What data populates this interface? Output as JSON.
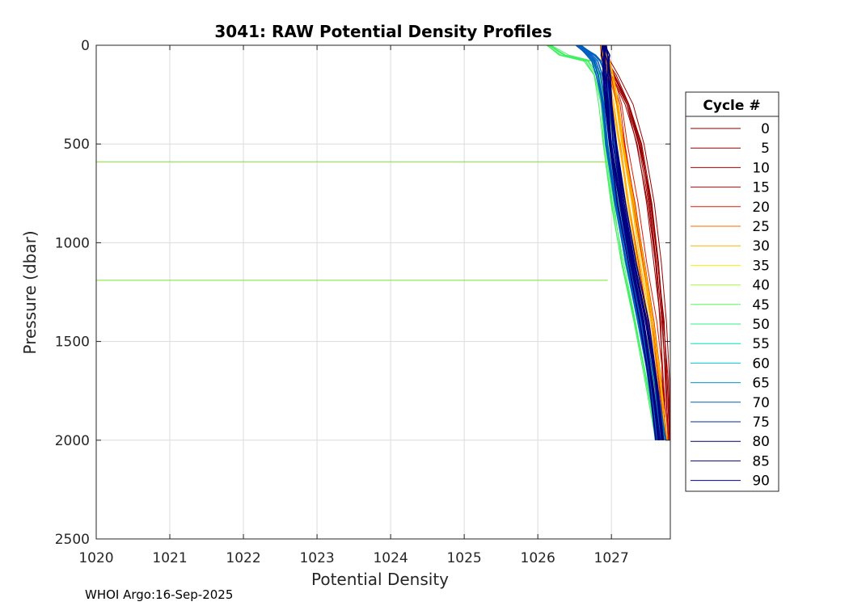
{
  "chart_data": {
    "type": "line",
    "title": "3041: RAW Potential Density Profiles",
    "xlabel": "Potential Density",
    "ylabel": "Pressure (dbar)",
    "xlim": [
      1020,
      1027.8
    ],
    "ylim": [
      0,
      2500
    ],
    "y_reversed": true,
    "xticks": [
      1020,
      1021,
      1022,
      1023,
      1024,
      1025,
      1026,
      1027
    ],
    "yticks": [
      0,
      500,
      1000,
      1500,
      2000,
      2500
    ],
    "grid": true,
    "legend_position": "outside-right",
    "legend_title": "Cycle #",
    "cycles": [
      "0",
      "5",
      "10",
      "15",
      "20",
      "25",
      "30",
      "35",
      "40",
      "45",
      "50",
      "55",
      "60",
      "65",
      "70",
      "75",
      "80",
      "85",
      "90"
    ],
    "cycle_colors": [
      "#7f0000",
      "#8f0000",
      "#a50000",
      "#c40000",
      "#e81800",
      "#ff6a00",
      "#ffb000",
      "#f2f200",
      "#a8ff3a",
      "#55ff55",
      "#2ef08a",
      "#00e6b8",
      "#00c8e0",
      "#0096c8",
      "#0060b0",
      "#0a2a9a",
      "#00006e",
      "#000080",
      "#000096"
    ],
    "profile_density_levels_pressure": [
      0,
      50,
      80,
      150,
      300,
      500,
      800,
      1100,
      1400,
      1700,
      2000
    ],
    "profile_groups": [
      {
        "cycles": "0-15",
        "color": "#9a0000",
        "density": [
          1026.87,
          1026.89,
          1026.93,
          1027.04,
          1027.23,
          1027.39,
          1027.53,
          1027.63,
          1027.7,
          1027.74,
          1027.77
        ]
      },
      {
        "cycles": "15-25",
        "color": "#e01c00",
        "density": [
          1026.9,
          1026.91,
          1026.93,
          1026.98,
          1027.08,
          1027.17,
          1027.3,
          1027.43,
          1027.55,
          1027.65,
          1027.72
        ]
      },
      {
        "cycles": "25-35",
        "color": "#ffb400",
        "density": [
          1026.88,
          1026.89,
          1026.92,
          1026.97,
          1027.04,
          1027.12,
          1027.25,
          1027.38,
          1027.51,
          1027.62,
          1027.7
        ]
      },
      {
        "cycles": "40-55",
        "color": "#40f060",
        "density": [
          1026.15,
          1026.35,
          1026.7,
          1026.82,
          1026.9,
          1026.96,
          1027.06,
          1027.2,
          1027.37,
          1027.52,
          1027.66
        ]
      },
      {
        "cycles": "60-75",
        "color": "#0060c0",
        "density": [
          1026.55,
          1026.72,
          1026.8,
          1026.86,
          1026.93,
          1026.99,
          1027.1,
          1027.25,
          1027.42,
          1027.56,
          1027.67
        ]
      },
      {
        "cycles": "80-90",
        "color": "#000080",
        "density": [
          1026.9,
          1026.91,
          1026.92,
          1026.93,
          1026.96,
          1027.01,
          1027.13,
          1027.28,
          1027.44,
          1027.57,
          1027.66
        ]
      }
    ],
    "annotations": [
      {
        "type": "hline",
        "pressure": 590,
        "color": "#7fe030"
      },
      {
        "type": "hline",
        "pressure": 1190,
        "color": "#7fe030"
      }
    ]
  },
  "footer": "WHOI Argo:16-Sep-2025"
}
